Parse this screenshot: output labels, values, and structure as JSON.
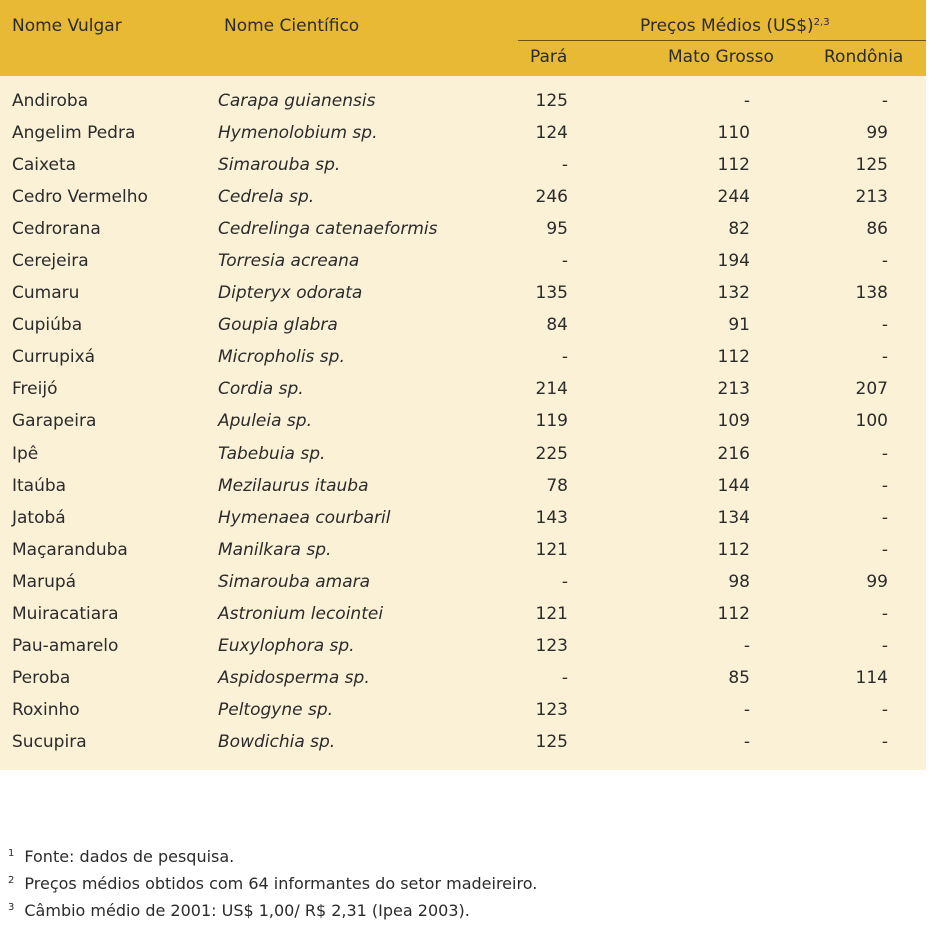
{
  "header": {
    "col_vulgar": "Nome Vulgar",
    "col_scientific": "Nome Científico",
    "col_prices": "Preços Médios (US$)",
    "col_prices_sup": "2,3",
    "sub_para": "Pará",
    "sub_mato_grosso": "Mato Grosso",
    "sub_rondonia": "Rondônia"
  },
  "rows": [
    {
      "vulgar": "Andiroba",
      "scientific": "Carapa guianensis",
      "para": "125",
      "mt": "-",
      "ro": "-"
    },
    {
      "vulgar": "Angelim Pedra",
      "scientific": "Hymenolobium sp.",
      "para": "124",
      "mt": "110",
      "ro": "99"
    },
    {
      "vulgar": "Caixeta",
      "scientific": "Simarouba sp.",
      "para": "-",
      "mt": "112",
      "ro": "125"
    },
    {
      "vulgar": "Cedro Vermelho",
      "scientific": "Cedrela sp.",
      "para": "246",
      "mt": "244",
      "ro": "213"
    },
    {
      "vulgar": "Cedrorana",
      "scientific": "Cedrelinga catenaeformis",
      "para": "95",
      "mt": "82",
      "ro": "86"
    },
    {
      "vulgar": "Cerejeira",
      "scientific": "Torresia acreana",
      "para": "-",
      "mt": "194",
      "ro": "-"
    },
    {
      "vulgar": "Cumaru",
      "scientific": "Dipteryx odorata",
      "para": "135",
      "mt": "132",
      "ro": "138"
    },
    {
      "vulgar": "Cupiúba",
      "scientific": "Goupia glabra",
      "para": "84",
      "mt": "91",
      "ro": "-"
    },
    {
      "vulgar": "Currupixá",
      "scientific": "Micropholis sp.",
      "para": "-",
      "mt": "112",
      "ro": "-"
    },
    {
      "vulgar": "Freijó",
      "scientific": "Cordia sp.",
      "para": "214",
      "mt": "213",
      "ro": "207"
    },
    {
      "vulgar": "Garapeira",
      "scientific": "Apuleia sp.",
      "para": "119",
      "mt": "109",
      "ro": "100"
    },
    {
      "vulgar": "Ipê",
      "scientific": "Tabebuia sp.",
      "para": "225",
      "mt": "216",
      "ro": "-"
    },
    {
      "vulgar": "Itaúba",
      "scientific": "Mezilaurus itauba",
      "para": "78",
      "mt": "144",
      "ro": "-"
    },
    {
      "vulgar": "Jatobá",
      "scientific": "Hymenaea courbaril",
      "para": "143",
      "mt": "134",
      "ro": "-"
    },
    {
      "vulgar": "Maçaranduba",
      "scientific": "Manilkara sp.",
      "para": "121",
      "mt": "112",
      "ro": "-"
    },
    {
      "vulgar": "Marupá",
      "scientific": "Simarouba amara",
      "para": "-",
      "mt": "98",
      "ro": "99"
    },
    {
      "vulgar": "Muiracatiara",
      "scientific": "Astronium lecointei",
      "para": "121",
      "mt": "112",
      "ro": "-"
    },
    {
      "vulgar": "Pau-amarelo",
      "scientific": "Euxylophora sp.",
      "para": "123",
      "mt": "-",
      "ro": "-"
    },
    {
      "vulgar": "Peroba",
      "scientific": "Aspidosperma sp.",
      "para": "-",
      "mt": "85",
      "ro": "114"
    },
    {
      "vulgar": "Roxinho",
      "scientific": "Peltogyne sp.",
      "para": "123",
      "mt": "-",
      "ro": "-"
    },
    {
      "vulgar": "Sucupira",
      "scientific": "Bowdichia sp.",
      "para": "125",
      "mt": "-",
      "ro": "-"
    }
  ],
  "footnotes": [
    {
      "num": "1",
      "text": "Fonte: dados de pesquisa."
    },
    {
      "num": "2",
      "text": "Preços médios obtidos com 64 informantes do setor madeireiro."
    },
    {
      "num": "3",
      "text": "Câmbio médio de 2001: US$ 1,00/ R$ 2,31 (Ipea 2003)."
    }
  ],
  "colors": {
    "header_bg": "#e8b935",
    "body_bg": "#fbf1d6",
    "text": "#2b2b2b"
  }
}
